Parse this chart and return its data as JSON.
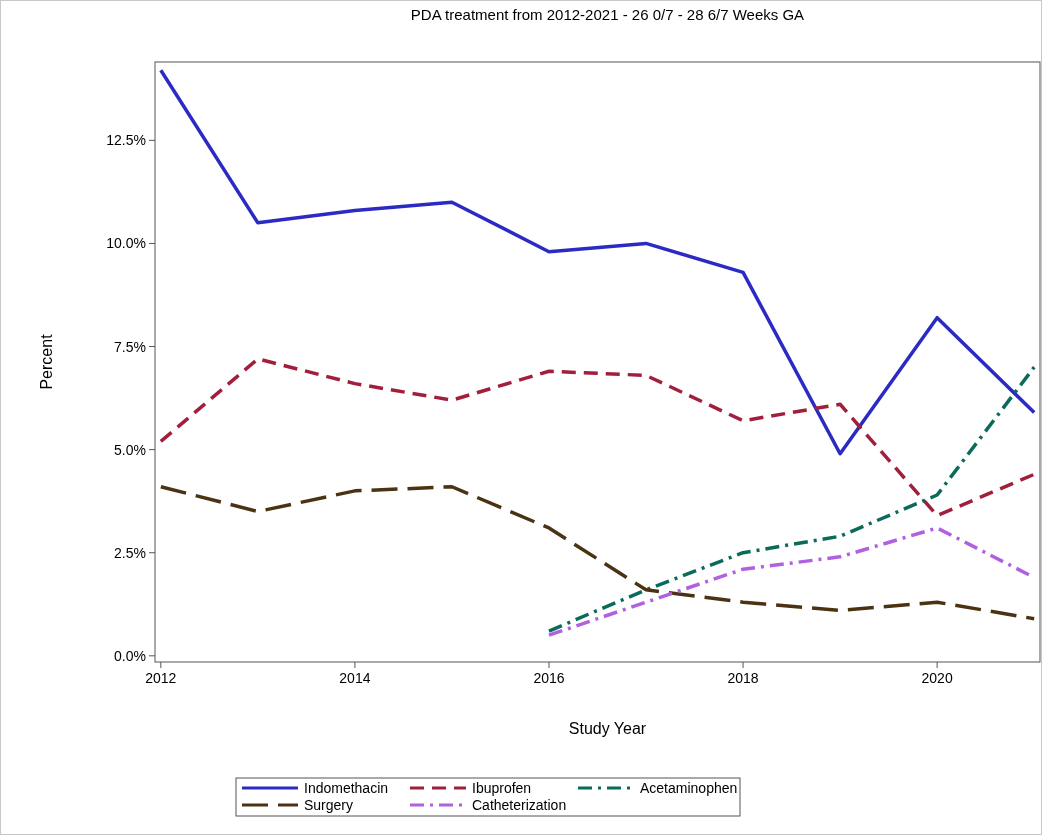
{
  "chart_data": {
    "type": "line",
    "title": "PDA treatment from 2012-2021 - 26 0/7 - 28 6/7 Weeks GA",
    "xlabel": "Study Year",
    "ylabel": "Percent",
    "x": [
      2012,
      2013,
      2014,
      2015,
      2016,
      2017,
      2018,
      2019,
      2020,
      2021
    ],
    "xlim": [
      2011.94,
      2021.06
    ],
    "xticks": [
      2012,
      2014,
      2016,
      2018,
      2020
    ],
    "ylim": [
      -0.15,
      14.4
    ],
    "yticks": [
      {
        "value": 0,
        "label": "0.0%"
      },
      {
        "value": 2.5,
        "label": "2.5%"
      },
      {
        "value": 5,
        "label": "5.0%"
      },
      {
        "value": 7.5,
        "label": "7.5%"
      },
      {
        "value": 10,
        "label": "10.0%"
      },
      {
        "value": 12.5,
        "label": "12.5%"
      }
    ],
    "grid": false,
    "legend": "bottom",
    "series": [
      {
        "name": "Indomethacin",
        "color": "#2b2bc4",
        "line_style": "solid",
        "values": [
          14.2,
          10.5,
          10.8,
          11.0,
          9.8,
          10.0,
          9.3,
          4.9,
          8.2,
          5.9
        ]
      },
      {
        "name": "Ibuprofen",
        "color": "#a21f3c",
        "line_style": "dashed",
        "values": [
          5.2,
          7.2,
          6.6,
          6.2,
          6.9,
          6.8,
          5.7,
          6.1,
          3.4,
          4.4
        ]
      },
      {
        "name": "Acetaminophen",
        "color": "#0b6b5b",
        "line_style": "dashdot",
        "values": [
          null,
          null,
          null,
          null,
          0.6,
          1.6,
          2.5,
          2.9,
          3.9,
          7.0
        ]
      },
      {
        "name": "Surgery",
        "color": "#4b3212",
        "line_style": "longdash",
        "values": [
          4.1,
          3.5,
          4.0,
          4.1,
          3.1,
          1.6,
          1.3,
          1.1,
          1.3,
          0.9
        ]
      },
      {
        "name": "Catheterization",
        "color": "#b060e0",
        "line_style": "dashdot",
        "values": [
          null,
          null,
          null,
          null,
          0.5,
          1.3,
          2.1,
          2.4,
          3.1,
          1.9
        ]
      }
    ]
  }
}
